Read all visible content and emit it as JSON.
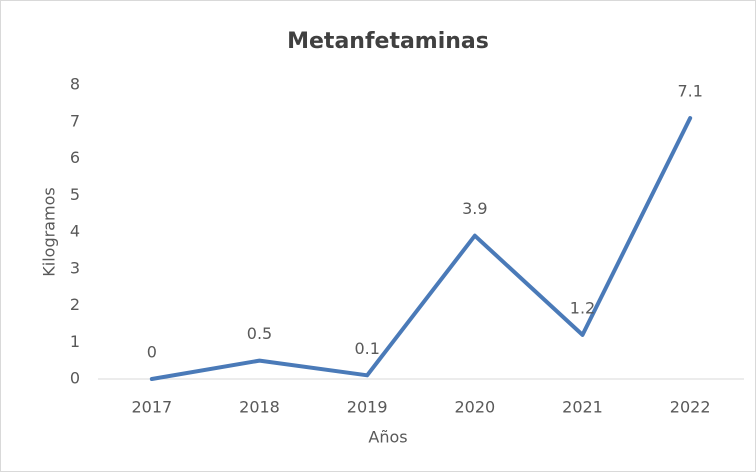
{
  "chart_data": {
    "type": "line",
    "title": "Metanfetaminas",
    "x_label": "Años",
    "y_label": "Kilogramos",
    "categories": [
      "2017",
      "2018",
      "2019",
      "2020",
      "2021",
      "2022"
    ],
    "values": [
      0,
      0.5,
      0.1,
      3.9,
      1.2,
      7.1
    ],
    "color": "#4a7ab8",
    "ylim": [
      0,
      8
    ],
    "yticks": [
      0,
      1,
      2,
      3,
      4,
      5,
      6,
      7,
      8
    ],
    "grid": false
  }
}
